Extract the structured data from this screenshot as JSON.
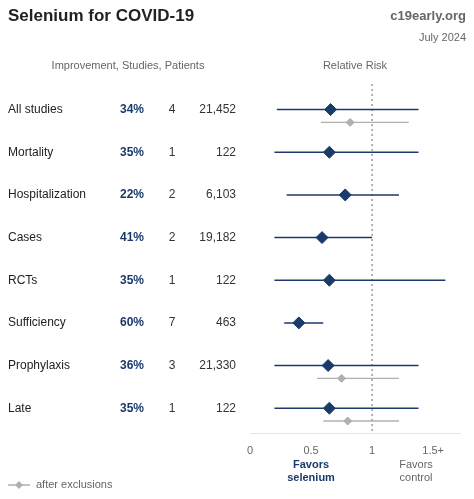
{
  "chart_data": {
    "type": "forest",
    "title": "Selenium for COVID-19",
    "annotations": [
      "c19early.org",
      "July 2024",
      "Improvement, Studies, Patients",
      "Relative Risk",
      "Favors\nselenium",
      "Favors\ncontrol"
    ],
    "categories": [
      "All studies",
      "Mortality",
      "Hospitalization",
      "Cases",
      "RCTs",
      "Sufficiency",
      "Prophylaxis",
      "Late"
    ],
    "improvement": [
      "34%",
      "35%",
      "22%",
      "41%",
      "35%",
      "60%",
      "36%",
      "35%"
    ],
    "studies": [
      "4",
      "1",
      "2",
      "2",
      "1",
      "7",
      "3",
      "1"
    ],
    "patients": [
      "21,452",
      "122",
      "6,103",
      "19,182",
      "122",
      "463",
      "21,330",
      "122"
    ],
    "series": [
      {
        "color": "#1a3a6b",
        "values": [
          0.66,
          0.65,
          0.78,
          0.59,
          0.65,
          0.4,
          0.64,
          0.65
        ],
        "ci_low": [
          0.22,
          0.2,
          0.3,
          0.2,
          0.2,
          0.28,
          0.2,
          0.2
        ],
        "ci_high": [
          1.38,
          1.38,
          1.22,
          1.0,
          1.6,
          0.6,
          1.38,
          1.38
        ]
      },
      {
        "name": "after exclusions",
        "color": "#b0b0b0",
        "values": [
          0.82,
          null,
          null,
          null,
          null,
          null,
          0.75,
          0.8
        ],
        "ci_low": [
          0.58,
          null,
          null,
          null,
          null,
          null,
          0.55,
          0.6
        ],
        "ci_high": [
          1.3,
          null,
          null,
          null,
          null,
          null,
          1.22,
          1.22
        ]
      }
    ],
    "reference_x": 1,
    "xlim": [
      0,
      1.72
    ],
    "xticks": [
      0,
      0.5,
      1,
      {
        "value": 1.5,
        "label": "1.5+"
      }
    ],
    "grid": false,
    "legend": "lower left"
  }
}
